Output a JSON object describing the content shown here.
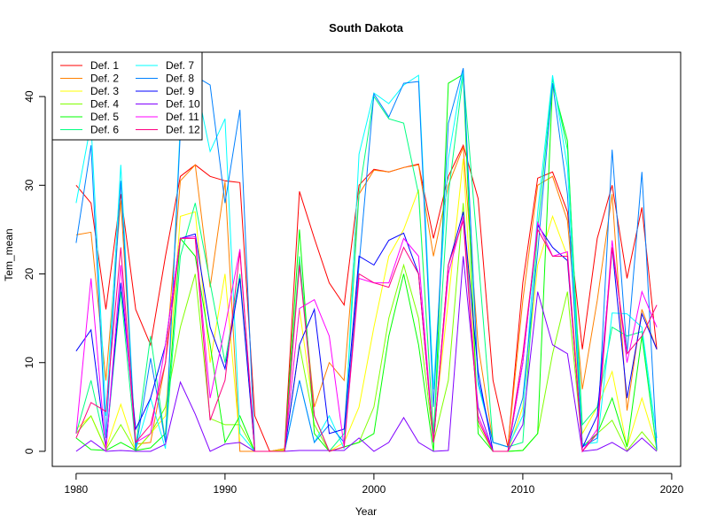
{
  "chart_data": {
    "type": "line",
    "title": "South Dakota",
    "xlabel": "Year",
    "ylabel": "Tem_mean",
    "xlim": [
      1978.4,
      2020.6
    ],
    "ylim": [
      -1.7,
      45
    ],
    "xticks": [
      1980,
      1990,
      2000,
      2010,
      2020
    ],
    "yticks": [
      0,
      10,
      20,
      30,
      40
    ],
    "grid": false,
    "legend_position": "top-left",
    "x": [
      1980,
      1981,
      1982,
      1983,
      1984,
      1985,
      1986,
      1987,
      1988,
      1989,
      1990,
      1991,
      1992,
      1993,
      1994,
      1995,
      1996,
      1997,
      1998,
      1999,
      2000,
      2001,
      2002,
      2003,
      2004,
      2005,
      2006,
      2007,
      2008,
      2009,
      2010,
      2011,
      2012,
      2013,
      2014,
      2015,
      2016,
      2017,
      2018,
      2019
    ],
    "series": [
      {
        "name": "Def. 1",
        "color": "#FF0000",
        "values": [
          30,
          28,
          16,
          29,
          16,
          12,
          22,
          31,
          32.3,
          31,
          30.5,
          30.3,
          4,
          0,
          0.3,
          29.3,
          24,
          19,
          16.5,
          30,
          31.8,
          31.5,
          32,
          32.4,
          24,
          31,
          34.5,
          28.5,
          8,
          0.5,
          19,
          30.8,
          31.5,
          27,
          11.5,
          24,
          30,
          19.5,
          27.5,
          11.5
        ]
      },
      {
        "name": "Def. 2",
        "color": "#FF8000",
        "values": [
          24.4,
          24.7,
          8,
          28.3,
          0.8,
          1,
          10,
          30.5,
          32.3,
          18.5,
          30.4,
          0,
          0,
          0,
          0.3,
          21.5,
          5,
          10,
          8,
          29,
          31.7,
          31.5,
          32,
          32.3,
          22,
          30,
          34.3,
          12,
          1,
          0.5,
          17,
          30,
          31,
          26,
          7,
          17,
          29,
          4.6,
          16,
          11.5
        ]
      },
      {
        "name": "Def. 3",
        "color": "#FFFF00",
        "values": [
          2.5,
          4,
          0.3,
          5.3,
          0.1,
          2,
          4,
          26.5,
          27,
          10,
          20,
          1,
          0,
          0,
          0.2,
          16,
          4,
          0,
          1,
          5,
          14,
          22,
          25,
          29.5,
          2,
          17,
          33,
          4,
          0,
          0,
          5,
          21,
          26.5,
          22,
          2,
          5,
          9,
          0.5,
          6,
          0.5
        ]
      },
      {
        "name": "Def. 4",
        "color": "#80FF00",
        "values": [
          2,
          4,
          0.2,
          3,
          0.1,
          2,
          5,
          14,
          20,
          3.7,
          3,
          3,
          0,
          0,
          0.1,
          12,
          3,
          0,
          0.5,
          1,
          5,
          15,
          21,
          15,
          1,
          8,
          28,
          3,
          0,
          0,
          0.1,
          2,
          11,
          18,
          0.5,
          2,
          3.5,
          0.1,
          2.2,
          0.2
        ]
      },
      {
        "name": "Def. 5",
        "color": "#00FF00",
        "values": [
          1.5,
          0.2,
          0.1,
          1,
          0.1,
          0.4,
          2,
          24,
          22,
          12,
          1,
          4,
          0,
          0,
          0,
          25,
          2,
          0,
          0.5,
          1,
          2,
          13,
          20,
          12,
          0,
          41.5,
          42.5,
          2,
          0,
          0,
          0.1,
          2,
          41.5,
          35,
          0.5,
          2,
          6,
          0.5,
          13,
          0.1
        ]
      },
      {
        "name": "Def. 6",
        "color": "#00FF80",
        "values": [
          2,
          8,
          0.5,
          18,
          0.5,
          13,
          1,
          22,
          28,
          19,
          10,
          20,
          0,
          0,
          0,
          22,
          4,
          0,
          2,
          29,
          40,
          37.5,
          37,
          29,
          2,
          29,
          42.5,
          22,
          1,
          0.5,
          1,
          25,
          42,
          34,
          3,
          5,
          14,
          13,
          13.5,
          0.2
        ]
      },
      {
        "name": "Def. 7",
        "color": "#00FFFF",
        "values": [
          28,
          37,
          4,
          32.3,
          0.2,
          6,
          0.3,
          37,
          42,
          33.8,
          37.5,
          2,
          0,
          0,
          0,
          8,
          1,
          4,
          0.3,
          33.5,
          40.4,
          39.2,
          41.3,
          42.4,
          7,
          33,
          43,
          7.5,
          1,
          0.5,
          4,
          27,
          42.4,
          32,
          0.8,
          1,
          15.6,
          15.5,
          14,
          1.5
        ]
      },
      {
        "name": "Def. 8",
        "color": "#0080FF",
        "values": [
          23.5,
          34.5,
          1.5,
          30.5,
          0.1,
          10.5,
          1,
          36,
          42.3,
          41.3,
          28,
          38.5,
          0,
          0,
          0,
          8,
          1,
          3,
          1,
          21,
          40.3,
          37.7,
          41.5,
          41.7,
          5,
          37,
          43.2,
          8,
          1,
          0.5,
          6,
          22.5,
          41.5,
          29,
          0.5,
          1.5,
          34,
          11,
          31.5,
          0.2
        ]
      },
      {
        "name": "Def. 9",
        "color": "#0000FF",
        "values": [
          11.3,
          13.7,
          0.5,
          19,
          2.5,
          6,
          12,
          24,
          24.5,
          14,
          9.3,
          19.5,
          0,
          0,
          0,
          12,
          16,
          2,
          2.5,
          22,
          21,
          23.8,
          24.6,
          20,
          1,
          21,
          27,
          9,
          0,
          0,
          10,
          25.5,
          23,
          21.5,
          0.4,
          4,
          23,
          6,
          15.5,
          11.5
        ]
      },
      {
        "name": "Def. 10",
        "color": "#8000FF",
        "values": [
          0,
          1.2,
          0,
          0.1,
          0,
          0,
          0.8,
          7.8,
          4.2,
          0,
          0.8,
          1,
          0,
          0,
          0,
          0.1,
          0.1,
          0.1,
          0.1,
          1.5,
          0,
          1,
          3.8,
          1,
          0,
          0.1,
          22,
          5,
          0,
          0,
          3,
          18,
          12,
          11,
          0,
          0.2,
          1,
          0,
          1.5,
          0
        ]
      },
      {
        "name": "Def. 11",
        "color": "#FF00FF",
        "values": [
          2,
          19.5,
          0,
          21,
          1,
          2,
          12,
          24,
          24.2,
          6,
          14,
          22.8,
          0,
          0,
          0,
          16.1,
          17.1,
          13,
          0.5,
          19.5,
          19,
          19,
          24,
          22,
          1,
          20,
          26.5,
          4,
          0,
          0,
          10,
          25.8,
          22,
          22.5,
          0,
          2.5,
          23.8,
          10,
          18,
          14
        ]
      },
      {
        "name": "Def. 12",
        "color": "#FF0080",
        "values": [
          1.5,
          5.5,
          4.5,
          23,
          1,
          3,
          10,
          24,
          24,
          3.5,
          8,
          22.5,
          0,
          0,
          0,
          21,
          4,
          0,
          0.5,
          20,
          19,
          18.5,
          23,
          20,
          1,
          21,
          26,
          3.5,
          0,
          0,
          11,
          25,
          22,
          22,
          0,
          2,
          23,
          11,
          13,
          16.5
        ]
      }
    ]
  }
}
